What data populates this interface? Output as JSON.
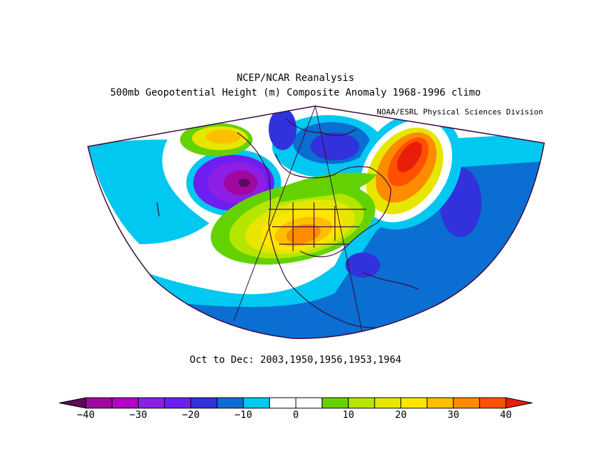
{
  "title": "NCEP/NCAR Reanalysis",
  "subtitle": "500mb Geopotential Height (m) Composite Anomaly 1968-1996 climo",
  "credit": "NOAA/ESRL Physical Sciences Division",
  "period": "Oct to Dec: 2003,1950,1956,1953,1964",
  "colorbar": {
    "ticks": [
      "−40",
      "−30",
      "−20",
      "−10",
      "0",
      "10",
      "20",
      "30",
      "40"
    ],
    "colors": [
      "#5a0b5a",
      "#a007a0",
      "#b400c8",
      "#8c1ee6",
      "#6e1ef0",
      "#3232dc",
      "#0a6ed2",
      "#00c8f0",
      "#ffffff",
      "#ffffff",
      "#64d200",
      "#b4e600",
      "#e6e600",
      "#ffe600",
      "#ffbe00",
      "#ff8c00",
      "#ff5000",
      "#e61e0a"
    ]
  },
  "map": {
    "projection": "polar stereographic sector",
    "region": "North America / Pacific / Atlantic",
    "features": [
      "anomaly-fill",
      "continent-outlines",
      "state-boundaries",
      "meridian-lines"
    ]
  }
}
